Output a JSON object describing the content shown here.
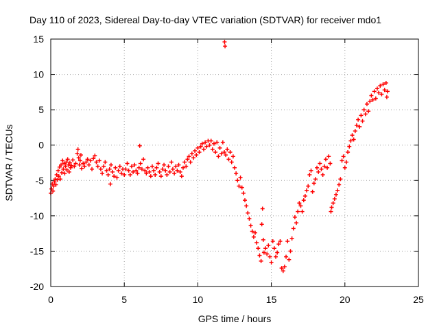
{
  "chart_data": {
    "type": "scatter",
    "title": "Day 110 of 2023, Sidereal Day-to-day VTEC variation (SDTVAR) for receiver mdo1",
    "xlabel": "GPS time / hours",
    "ylabel": "SDTVAR / TECUs",
    "xlim": [
      0,
      25
    ],
    "ylim": [
      -20,
      15
    ],
    "xticks": [
      0,
      5,
      10,
      15,
      20,
      25
    ],
    "yticks": [
      -20,
      -15,
      -10,
      -5,
      0,
      5,
      10,
      15
    ],
    "grid": true,
    "marker": "+",
    "color": "#ff0000",
    "series": [
      {
        "name": "SDTVAR",
        "points": [
          [
            0.0,
            -6.8
          ],
          [
            0.05,
            -6.2
          ],
          [
            0.1,
            -5.5
          ],
          [
            0.15,
            -6.5
          ],
          [
            0.2,
            -5.8
          ],
          [
            0.25,
            -5.2
          ],
          [
            0.3,
            -4.8
          ],
          [
            0.35,
            -5.6
          ],
          [
            0.4,
            -4.2
          ],
          [
            0.45,
            -4.9
          ],
          [
            0.5,
            -3.6
          ],
          [
            0.55,
            -4.4
          ],
          [
            0.6,
            -3.1
          ],
          [
            0.65,
            -4.8
          ],
          [
            0.7,
            -2.8
          ],
          [
            0.75,
            -3.9
          ],
          [
            0.8,
            -2.2
          ],
          [
            0.85,
            -3.4
          ],
          [
            0.9,
            -2.6
          ],
          [
            0.95,
            -4.0
          ],
          [
            1.0,
            -3.0
          ],
          [
            1.05,
            -2.4
          ],
          [
            1.1,
            -3.5
          ],
          [
            1.15,
            -2.0
          ],
          [
            1.2,
            -2.8
          ],
          [
            1.25,
            -3.8
          ],
          [
            1.3,
            -2.5
          ],
          [
            1.35,
            -3.2
          ],
          [
            1.4,
            -2.9
          ],
          [
            1.5,
            -2.1
          ],
          [
            1.6,
            -3.0
          ],
          [
            1.7,
            -2.6
          ],
          [
            1.8,
            -1.2
          ],
          [
            1.85,
            -0.6
          ],
          [
            1.9,
            -1.8
          ],
          [
            1.95,
            -2.8
          ],
          [
            2.0,
            -2.2
          ],
          [
            2.05,
            -1.4
          ],
          [
            2.1,
            -3.3
          ],
          [
            2.2,
            -2.6
          ],
          [
            2.3,
            -3.0
          ],
          [
            2.4,
            -2.4
          ],
          [
            2.5,
            -2.0
          ],
          [
            2.6,
            -2.8
          ],
          [
            2.7,
            -2.2
          ],
          [
            2.8,
            -3.4
          ],
          [
            2.9,
            -1.9
          ],
          [
            3.0,
            -1.5
          ],
          [
            3.1,
            -2.4
          ],
          [
            3.2,
            -3.0
          ],
          [
            3.3,
            -2.2
          ],
          [
            3.4,
            -3.4
          ],
          [
            3.5,
            -4.0
          ],
          [
            3.6,
            -3.0
          ],
          [
            3.7,
            -2.4
          ],
          [
            3.8,
            -3.6
          ],
          [
            3.9,
            -4.2
          ],
          [
            4.0,
            -3.4
          ],
          [
            4.05,
            -5.5
          ],
          [
            4.1,
            -2.8
          ],
          [
            4.2,
            -3.8
          ],
          [
            4.3,
            -4.4
          ],
          [
            4.4,
            -3.2
          ],
          [
            4.5,
            -4.6
          ],
          [
            4.6,
            -3.6
          ],
          [
            4.7,
            -3.0
          ],
          [
            4.8,
            -4.0
          ],
          [
            4.9,
            -3.4
          ],
          [
            5.0,
            -4.2
          ],
          [
            5.1,
            -3.4
          ],
          [
            5.2,
            -2.6
          ],
          [
            5.3,
            -3.6
          ],
          [
            5.4,
            -4.2
          ],
          [
            5.5,
            -3.0
          ],
          [
            5.6,
            -3.8
          ],
          [
            5.7,
            -2.8
          ],
          [
            5.8,
            -3.6
          ],
          [
            5.9,
            -4.0
          ],
          [
            6.0,
            -3.2
          ],
          [
            6.05,
            -0.1
          ],
          [
            6.1,
            -2.6
          ],
          [
            6.2,
            -3.4
          ],
          [
            6.3,
            -2.0
          ],
          [
            6.4,
            -3.6
          ],
          [
            6.5,
            -4.0
          ],
          [
            6.6,
            -3.2
          ],
          [
            6.7,
            -3.8
          ],
          [
            6.8,
            -4.4
          ],
          [
            6.9,
            -3.0
          ],
          [
            7.0,
            -3.6
          ],
          [
            7.1,
            -4.2
          ],
          [
            7.2,
            -3.2
          ],
          [
            7.3,
            -2.6
          ],
          [
            7.4,
            -3.8
          ],
          [
            7.5,
            -4.4
          ],
          [
            7.6,
            -3.4
          ],
          [
            7.7,
            -2.8
          ],
          [
            7.8,
            -3.6
          ],
          [
            7.9,
            -4.2
          ],
          [
            8.0,
            -3.0
          ],
          [
            8.1,
            -3.8
          ],
          [
            8.2,
            -2.4
          ],
          [
            8.3,
            -3.4
          ],
          [
            8.4,
            -4.0
          ],
          [
            8.5,
            -3.0
          ],
          [
            8.6,
            -3.6
          ],
          [
            8.7,
            -2.8
          ],
          [
            8.8,
            -3.8
          ],
          [
            8.9,
            -4.4
          ],
          [
            9.0,
            -3.2
          ],
          [
            9.1,
            -2.4
          ],
          [
            9.2,
            -3.0
          ],
          [
            9.3,
            -2.0
          ],
          [
            9.4,
            -1.6
          ],
          [
            9.5,
            -2.4
          ],
          [
            9.6,
            -1.2
          ],
          [
            9.7,
            -1.8
          ],
          [
            9.8,
            -0.8
          ],
          [
            9.9,
            -1.4
          ],
          [
            10.0,
            -0.4
          ],
          [
            10.1,
            -1.0
          ],
          [
            10.2,
            -0.2
          ],
          [
            10.3,
            0.2
          ],
          [
            10.4,
            -0.6
          ],
          [
            10.5,
            0.4
          ],
          [
            10.6,
            -0.2
          ],
          [
            10.7,
            0.6
          ],
          [
            10.8,
            0.0
          ],
          [
            10.9,
            0.6
          ],
          [
            11.0,
            -0.6
          ],
          [
            11.1,
            0.2
          ],
          [
            11.2,
            -1.0
          ],
          [
            11.3,
            0.4
          ],
          [
            11.4,
            -1.6
          ],
          [
            11.5,
            -0.4
          ],
          [
            11.6,
            -1.2
          ],
          [
            11.7,
            0.4
          ],
          [
            11.8,
            -1.0
          ],
          [
            11.82,
            14.6
          ],
          [
            11.85,
            14.0
          ],
          [
            11.9,
            -1.4
          ],
          [
            12.0,
            -0.6
          ],
          [
            12.1,
            -2.0
          ],
          [
            12.2,
            -1.0
          ],
          [
            12.3,
            -2.4
          ],
          [
            12.4,
            -1.6
          ],
          [
            12.5,
            -3.2
          ],
          [
            12.6,
            -4.0
          ],
          [
            12.7,
            -5.0
          ],
          [
            12.8,
            -5.8
          ],
          [
            12.9,
            -4.6
          ],
          [
            13.0,
            -6.0
          ],
          [
            13.1,
            -6.8
          ],
          [
            13.2,
            -7.8
          ],
          [
            13.3,
            -8.6
          ],
          [
            13.4,
            -9.6
          ],
          [
            13.5,
            -10.4
          ],
          [
            13.6,
            -11.4
          ],
          [
            13.7,
            -12.2
          ],
          [
            13.8,
            -13.0
          ],
          [
            13.9,
            -12.4
          ],
          [
            14.0,
            -13.8
          ],
          [
            14.1,
            -14.6
          ],
          [
            14.2,
            -15.6
          ],
          [
            14.3,
            -16.4
          ],
          [
            14.35,
            -11.2
          ],
          [
            14.4,
            -9.0
          ],
          [
            14.45,
            -13.4
          ],
          [
            14.5,
            -15.2
          ],
          [
            14.6,
            -14.6
          ],
          [
            14.7,
            -15.4
          ],
          [
            14.8,
            -14.2
          ],
          [
            14.9,
            -15.8
          ],
          [
            15.0,
            -16.6
          ],
          [
            15.1,
            -13.6
          ],
          [
            15.2,
            -14.6
          ],
          [
            15.3,
            -15.8
          ],
          [
            15.4,
            -15.2
          ],
          [
            15.5,
            -14.0
          ],
          [
            15.6,
            -13.6
          ],
          [
            15.7,
            -17.4
          ],
          [
            15.8,
            -17.8
          ],
          [
            15.9,
            -17.2
          ],
          [
            16.0,
            -15.8
          ],
          [
            16.1,
            -13.6
          ],
          [
            16.2,
            -16.2
          ],
          [
            16.3,
            -15.0
          ],
          [
            16.4,
            -13.2
          ],
          [
            16.5,
            -11.8
          ],
          [
            16.6,
            -10.2
          ],
          [
            16.7,
            -11.0
          ],
          [
            16.8,
            -9.4
          ],
          [
            16.9,
            -8.2
          ],
          [
            17.0,
            -8.6
          ],
          [
            17.1,
            -9.4
          ],
          [
            17.2,
            -7.8
          ],
          [
            17.3,
            -7.2
          ],
          [
            17.4,
            -6.4
          ],
          [
            17.5,
            -5.8
          ],
          [
            17.6,
            -4.2
          ],
          [
            17.7,
            -3.6
          ],
          [
            17.8,
            -6.6
          ],
          [
            17.9,
            -5.4
          ],
          [
            18.0,
            -4.8
          ],
          [
            18.1,
            -3.2
          ],
          [
            18.2,
            -3.8
          ],
          [
            18.3,
            -2.6
          ],
          [
            18.4,
            -3.4
          ],
          [
            18.5,
            -4.2
          ],
          [
            18.6,
            -3.0
          ],
          [
            18.7,
            -2.0
          ],
          [
            18.8,
            -3.2
          ],
          [
            18.9,
            -1.6
          ],
          [
            19.0,
            -2.6
          ],
          [
            19.05,
            -9.4
          ],
          [
            19.1,
            -8.8
          ],
          [
            19.2,
            -8.2
          ],
          [
            19.3,
            -7.6
          ],
          [
            19.4,
            -7.0
          ],
          [
            19.5,
            -6.4
          ],
          [
            19.6,
            -5.6
          ],
          [
            19.7,
            -4.8
          ],
          [
            19.8,
            -2.2
          ],
          [
            19.9,
            -1.6
          ],
          [
            20.0,
            -3.2
          ],
          [
            20.1,
            -2.4
          ],
          [
            20.2,
            -1.0
          ],
          [
            20.3,
            -0.2
          ],
          [
            20.4,
            0.6
          ],
          [
            20.5,
            1.4
          ],
          [
            20.6,
            0.8
          ],
          [
            20.7,
            2.0
          ],
          [
            20.8,
            2.8
          ],
          [
            20.9,
            3.6
          ],
          [
            21.0,
            2.6
          ],
          [
            21.1,
            4.2
          ],
          [
            21.2,
            3.4
          ],
          [
            21.3,
            5.0
          ],
          [
            21.4,
            4.4
          ],
          [
            21.5,
            5.8
          ],
          [
            21.6,
            4.8
          ],
          [
            21.7,
            6.2
          ],
          [
            21.8,
            7.0
          ],
          [
            21.9,
            6.4
          ],
          [
            22.0,
            7.6
          ],
          [
            22.1,
            6.6
          ],
          [
            22.2,
            8.0
          ],
          [
            22.3,
            7.4
          ],
          [
            22.4,
            8.4
          ],
          [
            22.5,
            7.2
          ],
          [
            22.6,
            8.6
          ],
          [
            22.7,
            7.8
          ],
          [
            22.8,
            8.8
          ],
          [
            22.85,
            6.8
          ],
          [
            22.9,
            7.6
          ]
        ]
      }
    ]
  }
}
